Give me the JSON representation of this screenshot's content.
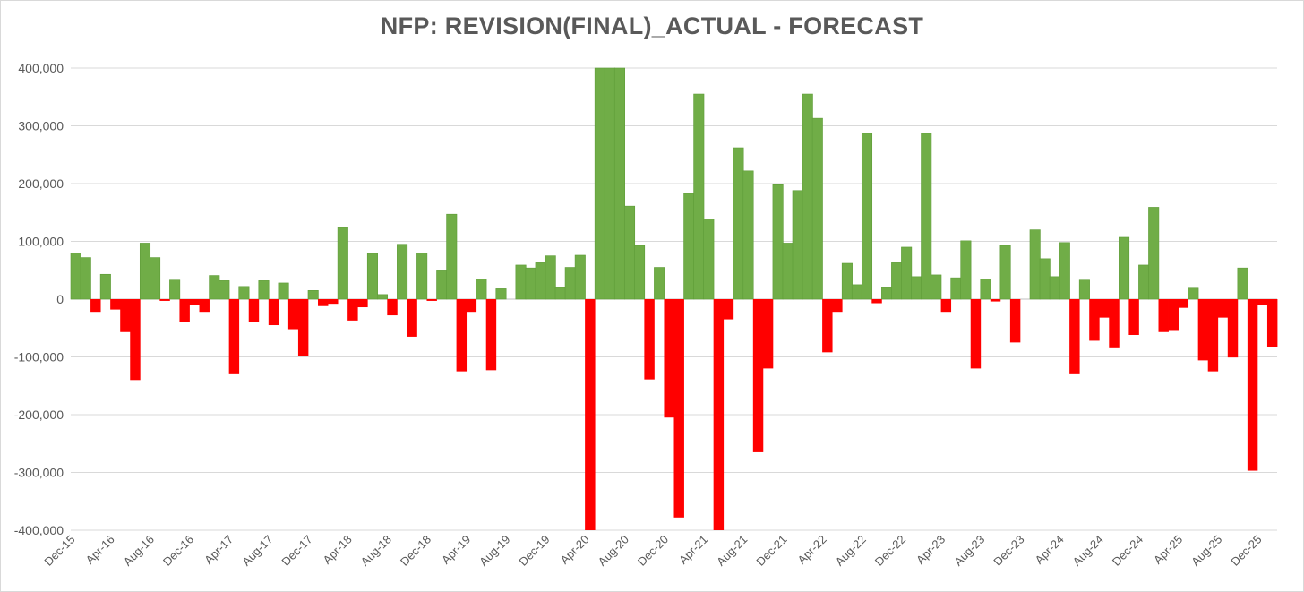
{
  "chart_data": {
    "type": "bar",
    "title": "NFP: REVISION(FINAL)_ACTUAL - FORECAST",
    "xlabel": "",
    "ylabel": "",
    "ylim": [
      -400000,
      400000
    ],
    "yticks": [
      400000,
      300000,
      200000,
      100000,
      0,
      -100000,
      -200000,
      -300000,
      -400000
    ],
    "ytick_labels": [
      "400,000",
      "300,000",
      "200,000",
      "100,000",
      "0",
      "-100,000",
      "-200,000",
      "-300,000",
      "-400,000"
    ],
    "xtick_labels": [
      "Dec-15",
      "Apr-16",
      "Aug-16",
      "Dec-16",
      "Apr-17",
      "Aug-17",
      "Dec-17",
      "Apr-18",
      "Aug-18",
      "Dec-18",
      "Apr-19",
      "Aug-19",
      "Dec-19",
      "Apr-20",
      "Aug-20",
      "Dec-20",
      "Apr-21",
      "Aug-21",
      "Dec-21",
      "Apr-22",
      "Aug-22",
      "Dec-22",
      "Apr-23",
      "Aug-23",
      "Dec-23",
      "Apr-24",
      "Aug-24",
      "Dec-24",
      "Apr-25",
      "Aug-25",
      "Dec-25"
    ],
    "grid": true,
    "legend": "none",
    "colors": {
      "positive": "#70ad47",
      "negative": "#ff0000"
    },
    "series": [
      {
        "values": [
          80000,
          72000,
          -22000,
          43000,
          -18000,
          -57000,
          -140000,
          97000,
          72000,
          -3000,
          33000,
          -40000,
          -10000,
          -22000,
          41000,
          32000,
          -130000,
          22000,
          -40000,
          32000,
          -45000,
          28000,
          -52000,
          -98000,
          15000,
          -12000,
          -8000,
          124000,
          -37000,
          -14000,
          79000,
          8000,
          -28000,
          95000,
          -65000,
          80000,
          -3000,
          49000,
          147000,
          -125000,
          -22000,
          35000,
          -123000,
          18000,
          0,
          59000,
          54000,
          63000,
          75000,
          20000,
          55000,
          76000,
          -402000,
          400000,
          400000,
          400000,
          161000,
          93000,
          -139000,
          55000,
          -205000,
          -378000,
          183000,
          355000,
          139000,
          -402000,
          -35000,
          262000,
          222000,
          -265000,
          -120000,
          198000,
          97000,
          188000,
          355000,
          313000,
          -92000,
          -22000,
          62000,
          25000,
          287000,
          -7000,
          20000,
          63000,
          90000,
          39000,
          287000,
          42000,
          -22000,
          37000,
          101000,
          -120000,
          35000,
          -4000,
          93000,
          -75000,
          0,
          120000,
          70000,
          39000,
          98000,
          -130000,
          33000,
          -72000,
          -32000,
          -85000,
          107000,
          -62000,
          59000,
          159000,
          -57000,
          -55000,
          -15000,
          19000,
          -106000,
          -125000,
          -32000,
          -101000,
          54000,
          -297000,
          -10000,
          -83000
        ]
      }
    ]
  }
}
